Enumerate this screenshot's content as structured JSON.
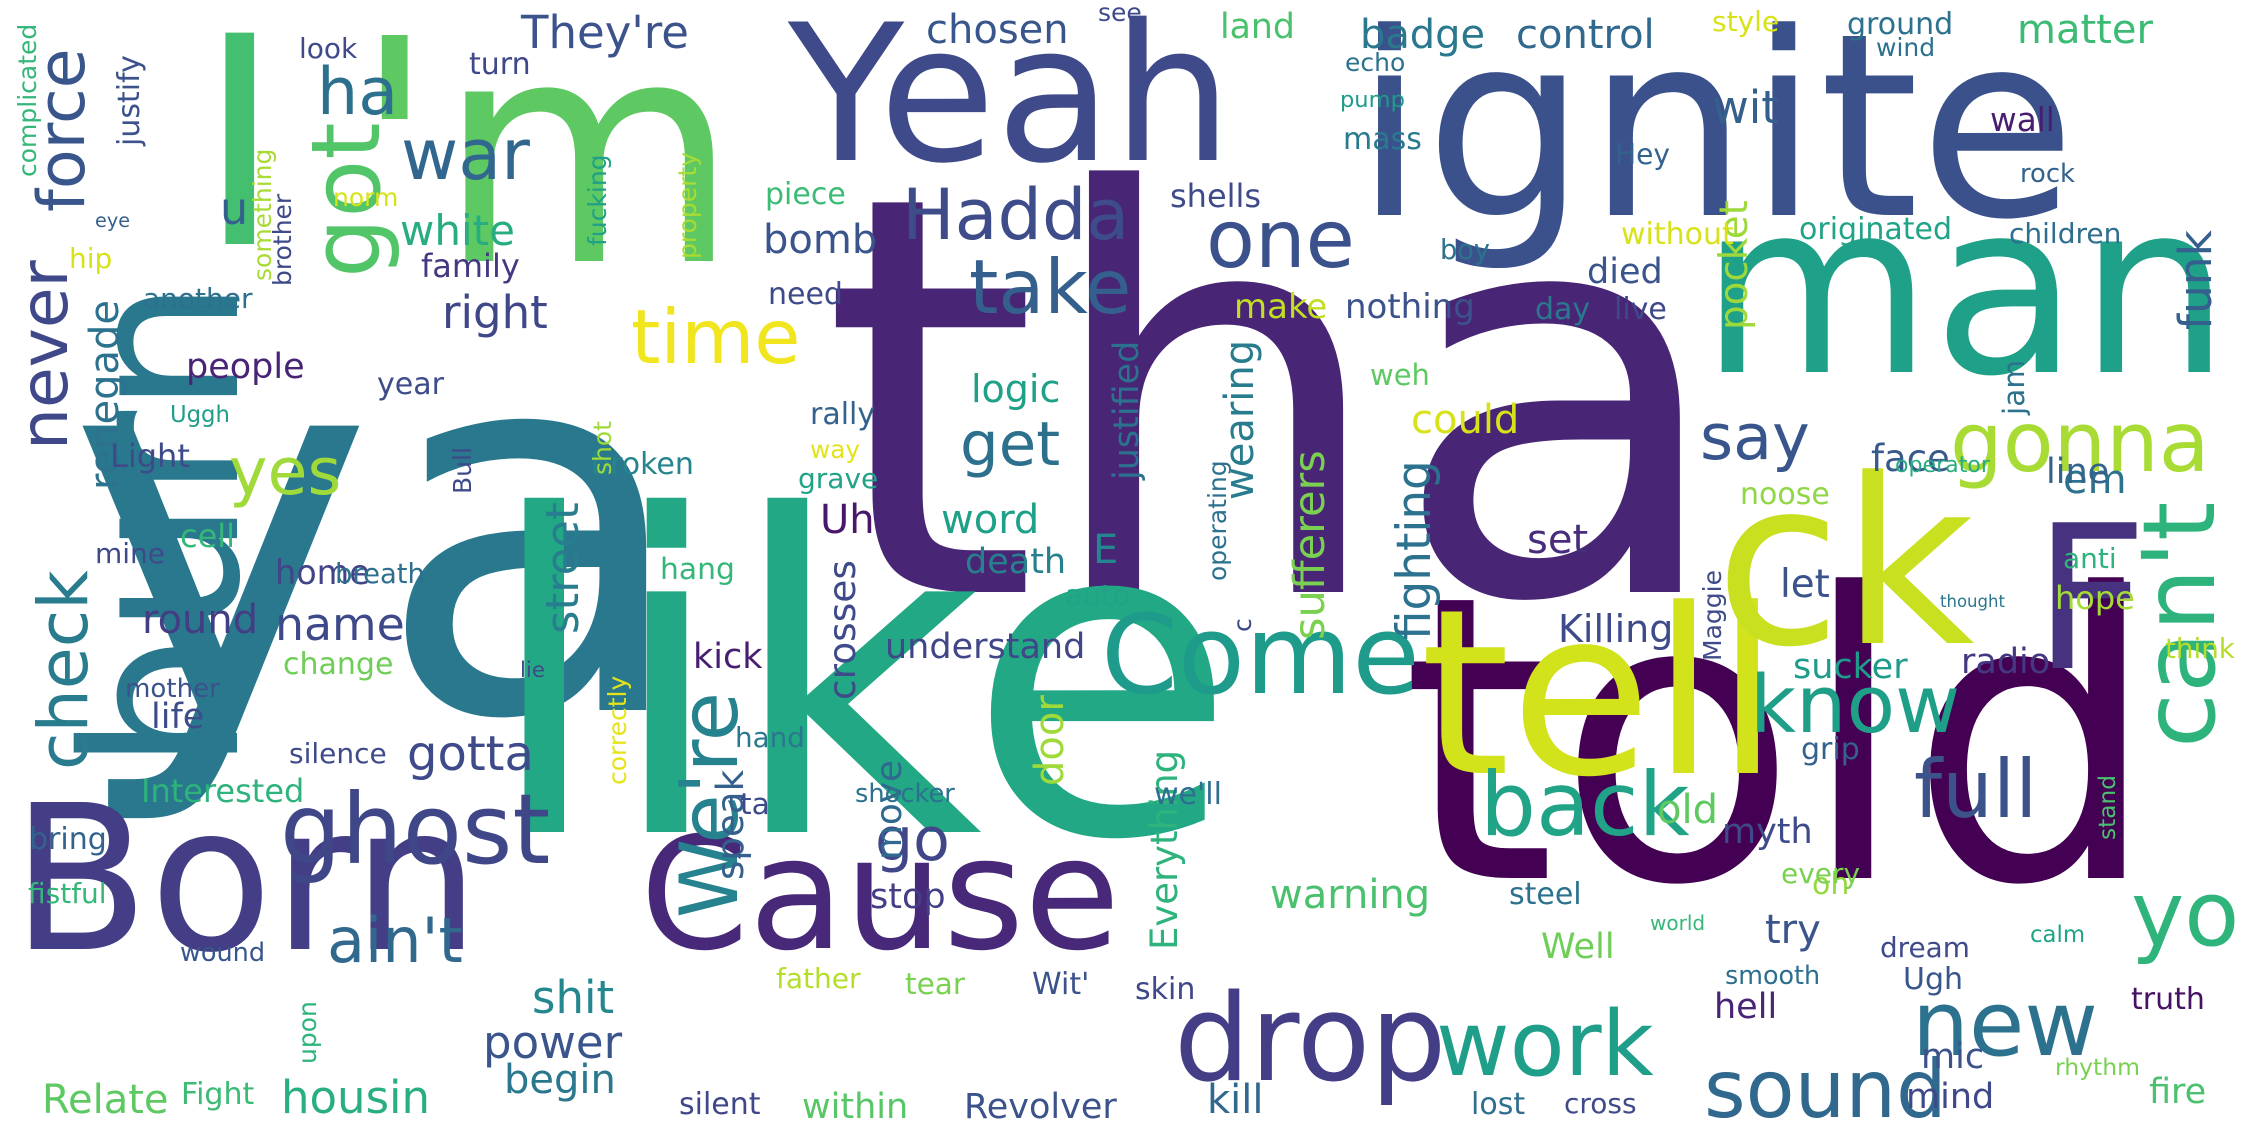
{
  "words": [
    {
      "text": "tha",
      "color": "#482575"
    },
    {
      "text": "ya",
      "color": "#29788E"
    },
    {
      "text": "like",
      "color": "#22A884"
    },
    {
      "text": "told",
      "color": "#440154"
    },
    {
      "text": "man",
      "color": "#1FA088"
    },
    {
      "text": "Yeah",
      "color": "#3E4A89"
    },
    {
      "text": "ignite",
      "color": "#3B518B"
    },
    {
      "text": "I",
      "color": "#44BF70"
    },
    {
      "text": "'m",
      "color": "#5EC962"
    },
    {
      "text": "Born",
      "color": "#433E85"
    },
    {
      "text": "Cause",
      "color": "#482878"
    },
    {
      "text": "burn",
      "color": "#2A788E"
    },
    {
      "text": "tell",
      "color": "#D2E21B"
    },
    {
      "text": "ck",
      "color": "#C8E020"
    },
    {
      "text": "F",
      "color": "#46327E"
    },
    {
      "text": "Come",
      "color": "#1E9B8A"
    },
    {
      "text": "drop",
      "color": "#433E85"
    },
    {
      "text": "can't",
      "color": "#2EB37C"
    },
    {
      "text": "got",
      "color": "#52C569"
    },
    {
      "text": "ghost",
      "color": "#3F4788"
    },
    {
      "text": "work",
      "color": "#1F9E89"
    },
    {
      "text": "sound",
      "color": "#31688E"
    },
    {
      "text": "new",
      "color": "#2C718E"
    },
    {
      "text": "yo",
      "color": "#2FB47C"
    },
    {
      "text": "full",
      "color": "#3B528B"
    },
    {
      "text": "know",
      "color": "#1F9F88"
    },
    {
      "text": "back",
      "color": "#20A386"
    },
    {
      "text": "gonna",
      "color": "#A8DB34"
    },
    {
      "text": "say",
      "color": "#39568C"
    },
    {
      "text": "get",
      "color": "#2D708E"
    },
    {
      "text": "one",
      "color": "#3B518B"
    },
    {
      "text": "take",
      "color": "#35608D"
    },
    {
      "text": "Hadda",
      "color": "#3E4C8A"
    },
    {
      "text": "time",
      "color": "#F1E51D"
    },
    {
      "text": "war",
      "color": "#31678E"
    },
    {
      "text": "ha",
      "color": "#2D708E"
    },
    {
      "text": "check",
      "color": "#287C8E"
    },
    {
      "text": "force",
      "color": "#39568C"
    },
    {
      "text": "never",
      "color": "#3F4889"
    },
    {
      "text": "yes",
      "color": "#9FDA3A"
    },
    {
      "text": "We're",
      "color": "#26828E"
    },
    {
      "text": "go",
      "color": "#404688"
    },
    {
      "text": "ain't",
      "color": "#31688E"
    },
    {
      "text": "Relate",
      "color": "#5EC962"
    },
    {
      "text": "housin",
      "color": "#29AF7F"
    },
    {
      "text": "power",
      "color": "#3A548C"
    },
    {
      "text": "shit",
      "color": "#24878E"
    },
    {
      "text": "begin",
      "color": "#2A778E"
    },
    {
      "text": "gotta",
      "color": "#3E4A89"
    },
    {
      "text": "renegade",
      "color": "#2C728E"
    },
    {
      "text": "name",
      "color": "#3E4989"
    },
    {
      "text": "round",
      "color": "#433D84"
    },
    {
      "text": "life",
      "color": "#3D4D8A"
    },
    {
      "text": "home",
      "color": "#414487"
    },
    {
      "text": "cell",
      "color": "#35B779"
    },
    {
      "text": "street",
      "color": "#287D8E"
    },
    {
      "text": "broken",
      "color": "#25848E"
    },
    {
      "text": "people",
      "color": "#482475"
    },
    {
      "text": "year",
      "color": "#3E4C8A"
    },
    {
      "text": "right",
      "color": "#3F4788"
    },
    {
      "text": "white",
      "color": "#27AD81"
    },
    {
      "text": "family",
      "color": "#453882"
    },
    {
      "text": "eye",
      "color": "#34618D"
    },
    {
      "text": "u",
      "color": "#34618D"
    },
    {
      "text": "turn",
      "color": "#3F4889"
    },
    {
      "text": "They're",
      "color": "#3B528B"
    },
    {
      "text": "chosen",
      "color": "#39568C"
    },
    {
      "text": "badge",
      "color": "#2A788E"
    },
    {
      "text": "control",
      "color": "#31688E"
    },
    {
      "text": "matter",
      "color": "#3CBB75"
    },
    {
      "text": "ground",
      "color": "#2C728E"
    },
    {
      "text": "bomb",
      "color": "#3A548C"
    },
    {
      "text": "need",
      "color": "#3E4A89"
    },
    {
      "text": "piece",
      "color": "#3CBB75"
    },
    {
      "text": "shells",
      "color": "#3E4A89"
    },
    {
      "text": "make",
      "color": "#C2DF23"
    },
    {
      "text": "nothing",
      "color": "#3B528B"
    },
    {
      "text": "day",
      "color": "#2A788E"
    },
    {
      "text": "live",
      "color": "#3F4889"
    },
    {
      "text": "died",
      "color": "#3A548C"
    },
    {
      "text": "funk",
      "color": "#355F8D"
    },
    {
      "text": "wit",
      "color": "#355F8D"
    },
    {
      "text": "wall",
      "color": "#481F70"
    },
    {
      "text": "Hey",
      "color": "#33638D"
    },
    {
      "text": "rock",
      "color": "#33638D"
    },
    {
      "text": "pump",
      "color": "#1E9B8A"
    },
    {
      "text": "mass",
      "color": "#297A8E"
    },
    {
      "text": "land",
      "color": "#4AC16D"
    },
    {
      "text": "pocket",
      "color": "#9DD93B"
    },
    {
      "text": "logic",
      "color": "#1FA188"
    },
    {
      "text": "could",
      "color": "#D8E219"
    },
    {
      "text": "word",
      "color": "#1FA088"
    },
    {
      "text": "death",
      "color": "#27808E"
    },
    {
      "text": "Uh",
      "color": "#481769"
    },
    {
      "text": "E",
      "color": "#24868E"
    },
    {
      "text": "set",
      "color": "#472D7B"
    },
    {
      "text": "wearing",
      "color": "#287C8E"
    },
    {
      "text": "sufferers",
      "color": "#7AD151"
    },
    {
      "text": "fighting",
      "color": "#2C728E"
    },
    {
      "text": "Killing",
      "color": "#3E4A89"
    },
    {
      "text": "let",
      "color": "#3B528B"
    },
    {
      "text": "face",
      "color": "#38598C"
    },
    {
      "text": "em",
      "color": "#2C728E"
    },
    {
      "text": "line",
      "color": "#33638D"
    },
    {
      "text": "noose",
      "color": "#8FD744"
    },
    {
      "text": "operator",
      "color": "#27AD81"
    },
    {
      "text": "understand",
      "color": "#404688"
    },
    {
      "text": "kick",
      "color": "#481F70"
    },
    {
      "text": "crosses",
      "color": "#3E4A89"
    },
    {
      "text": "sucker",
      "color": "#1E9B8A"
    },
    {
      "text": "hope",
      "color": "#A5DB36"
    },
    {
      "text": "radio",
      "color": "#453882"
    },
    {
      "text": "grip",
      "color": "#34618D"
    },
    {
      "text": "thought",
      "color": "#2A788E"
    },
    {
      "text": "old",
      "color": "#5EC962"
    },
    {
      "text": "myth",
      "color": "#3E4A89"
    },
    {
      "text": "stand",
      "color": "#4AC16D"
    },
    {
      "text": "oh",
      "color": "#95D840"
    },
    {
      "text": "steel",
      "color": "#2C728E"
    },
    {
      "text": "world",
      "color": "#35B779"
    },
    {
      "text": "try",
      "color": "#3A548C"
    },
    {
      "text": "Well",
      "color": "#6ECE58"
    },
    {
      "text": "dream",
      "color": "#3E4A89"
    },
    {
      "text": "calm",
      "color": "#20A486"
    },
    {
      "text": "Ugh",
      "color": "#39568C"
    },
    {
      "text": "smooth",
      "color": "#2E6E8E"
    },
    {
      "text": "rhythm",
      "color": "#7AD151"
    },
    {
      "text": "fire",
      "color": "#4AC16D"
    },
    {
      "text": "mic",
      "color": "#3B528B"
    },
    {
      "text": "hell",
      "color": "#482475"
    },
    {
      "text": "mind",
      "color": "#3F4889"
    },
    {
      "text": "truth",
      "color": "#471164"
    },
    {
      "text": "warning",
      "color": "#4AC16D"
    },
    {
      "text": "stop",
      "color": "#433E85"
    },
    {
      "text": "speak",
      "color": "#35608D"
    },
    {
      "text": "move",
      "color": "#31688E"
    },
    {
      "text": "door",
      "color": "#9FDA3A"
    },
    {
      "text": "hand",
      "color": "#2A788E"
    },
    {
      "text": "ta",
      "color": "#3E4A89"
    },
    {
      "text": "kill",
      "color": "#31688E"
    },
    {
      "text": "silent",
      "color": "#3F4788"
    },
    {
      "text": "within",
      "color": "#56C667"
    },
    {
      "text": "Revolver",
      "color": "#3B528B"
    },
    {
      "text": "lost",
      "color": "#2E6E8E"
    },
    {
      "text": "cross",
      "color": "#3E4A89"
    },
    {
      "text": "Everything",
      "color": "#2EB37C"
    },
    {
      "text": "skin",
      "color": "#3F4889"
    },
    {
      "text": "Wit'",
      "color": "#3B528B"
    },
    {
      "text": "tear",
      "color": "#7AD151"
    },
    {
      "text": "father",
      "color": "#B5DE2B"
    },
    {
      "text": "Fight",
      "color": "#3CBB75"
    },
    {
      "text": "upon",
      "color": "#2EB37C"
    },
    {
      "text": "wound",
      "color": "#39568C"
    },
    {
      "text": "fistful",
      "color": "#35B779"
    },
    {
      "text": "bring",
      "color": "#33638D"
    },
    {
      "text": "Interested",
      "color": "#2EB37C"
    },
    {
      "text": "silence",
      "color": "#3E4A89"
    },
    {
      "text": "mother",
      "color": "#3B528B"
    },
    {
      "text": "change",
      "color": "#6ECE58"
    },
    {
      "text": "breath",
      "color": "#2E6E8E"
    },
    {
      "text": "mine",
      "color": "#3E4A89"
    },
    {
      "text": "Light",
      "color": "#3E4A89"
    },
    {
      "text": "Uggh",
      "color": "#1F9E89"
    },
    {
      "text": "Bull",
      "color": "#3E4A89"
    },
    {
      "text": "shot",
      "color": "#9FDA3A"
    },
    {
      "text": "rally",
      "color": "#33638D"
    },
    {
      "text": "way",
      "color": "#E2E418"
    },
    {
      "text": "grave",
      "color": "#20A386"
    },
    {
      "text": "justified",
      "color": "#2C728E"
    },
    {
      "text": "hang",
      "color": "#35B779"
    },
    {
      "text": "lie",
      "color": "#3E4A89"
    },
    {
      "text": "correctly",
      "color": "#E5E419"
    },
    {
      "text": "shocker",
      "color": "#2C728E"
    },
    {
      "text": "we'll",
      "color": "#2E6E8E"
    },
    {
      "text": "auto",
      "color": "#20A386"
    },
    {
      "text": "c",
      "color": "#3E4A89"
    },
    {
      "text": "operating",
      "color": "#2C728E"
    },
    {
      "text": "Maggie",
      "color": "#3E4A89"
    },
    {
      "text": "anti",
      "color": "#2EB37C"
    },
    {
      "text": "think",
      "color": "#B5DE2B"
    },
    {
      "text": "every",
      "color": "#7AD151"
    },
    {
      "text": "boy",
      "color": "#2C728E"
    },
    {
      "text": "weh",
      "color": "#5EC962"
    },
    {
      "text": "jam",
      "color": "#2C728E"
    },
    {
      "text": "originated",
      "color": "#20A386"
    },
    {
      "text": "without",
      "color": "#D8E219"
    },
    {
      "text": "children",
      "color": "#2E6E8E"
    },
    {
      "text": "fucking",
      "color": "#1FA088"
    },
    {
      "text": "property",
      "color": "#A8DB34"
    },
    {
      "text": "something",
      "color": "#A8DB34"
    },
    {
      "text": "brother",
      "color": "#3E4A89"
    },
    {
      "text": "another",
      "color": "#2C728E"
    },
    {
      "text": "hip",
      "color": "#D8E219"
    },
    {
      "text": "norm",
      "color": "#D8E219"
    },
    {
      "text": "look",
      "color": "#3E4A89"
    },
    {
      "text": "justify",
      "color": "#3B528B"
    },
    {
      "text": "complicated",
      "color": "#35B779"
    },
    {
      "text": "see",
      "color": "#3E4A89"
    },
    {
      "text": "echo",
      "color": "#2C728E"
    },
    {
      "text": "style",
      "color": "#D8E219"
    },
    {
      "text": "wind",
      "color": "#2C728E"
    }
  ]
}
